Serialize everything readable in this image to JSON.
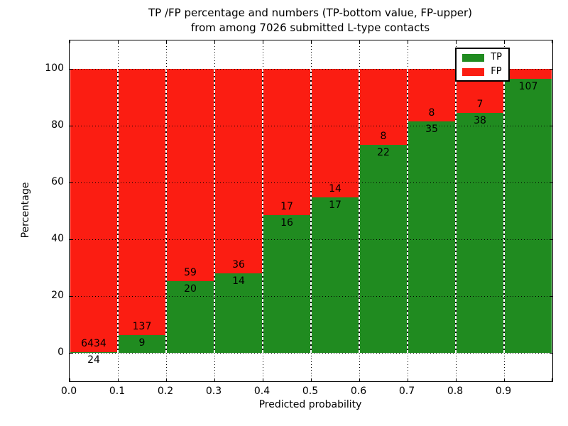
{
  "title": {
    "line1": "TP /FP percentage and numbers (TP-bottom value, FP-upper)",
    "line2": "from among 7026 submitted L-type contacts"
  },
  "chart_data": {
    "type": "bar",
    "stacked": true,
    "normalized": "each bar stacks to 100%",
    "title": "TP /FP percentage and numbers (TP-bottom value, FP-upper)\nfrom among 7026 submitted L-type contacts",
    "xlabel": "Predicted probability",
    "ylabel": "Percentage",
    "xlim": [
      0.0,
      1.0
    ],
    "ylim": [
      -10,
      110
    ],
    "bin_width": 0.1,
    "x_tick_labels": [
      "0.0",
      "0.1",
      "0.2",
      "0.3",
      "0.4",
      "0.5",
      "0.6",
      "0.7",
      "0.8",
      "0.9"
    ],
    "y_ticks": [
      0,
      20,
      40,
      60,
      80,
      100
    ],
    "grid": true,
    "colors": {
      "tp": "#208b20",
      "fp": "#fb1d12",
      "grid": "#000000",
      "background": "#ffffff"
    },
    "legend": {
      "position": "upper right",
      "entries": [
        {
          "label": "TP",
          "color": "#208b20"
        },
        {
          "label": "FP",
          "color": "#fb1d12"
        }
      ]
    },
    "bars": [
      {
        "bin_start": 0.0,
        "tp": 24,
        "fp": 6434,
        "tp_pct": 0.37
      },
      {
        "bin_start": 0.1,
        "tp": 9,
        "fp": 137,
        "tp_pct": 6.16
      },
      {
        "bin_start": 0.2,
        "tp": 20,
        "fp": 59,
        "tp_pct": 25.32
      },
      {
        "bin_start": 0.3,
        "tp": 14,
        "fp": 36,
        "tp_pct": 28.0
      },
      {
        "bin_start": 0.4,
        "tp": 16,
        "fp": 17,
        "tp_pct": 48.48
      },
      {
        "bin_start": 0.5,
        "tp": 17,
        "fp": 14,
        "tp_pct": 54.84
      },
      {
        "bin_start": 0.6,
        "tp": 22,
        "fp": 8,
        "tp_pct": 73.33
      },
      {
        "bin_start": 0.7,
        "tp": 35,
        "fp": 8,
        "tp_pct": 81.4
      },
      {
        "bin_start": 0.8,
        "tp": 38,
        "fp": 7,
        "tp_pct": 84.44
      },
      {
        "bin_start": 0.9,
        "tp": 107,
        "fp": null,
        "tp_pct": 96.4
      }
    ]
  }
}
